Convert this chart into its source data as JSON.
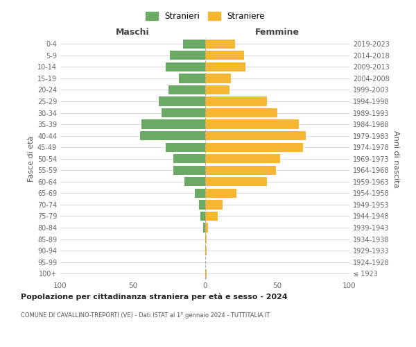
{
  "age_groups": [
    "100+",
    "95-99",
    "90-94",
    "85-89",
    "80-84",
    "75-79",
    "70-74",
    "65-69",
    "60-64",
    "55-59",
    "50-54",
    "45-49",
    "40-44",
    "35-39",
    "30-34",
    "25-29",
    "20-24",
    "15-19",
    "10-14",
    "5-9",
    "0-4"
  ],
  "birth_years": [
    "≤ 1923",
    "1924-1928",
    "1929-1933",
    "1934-1938",
    "1939-1943",
    "1944-1948",
    "1949-1953",
    "1954-1958",
    "1959-1963",
    "1964-1968",
    "1969-1973",
    "1974-1978",
    "1979-1983",
    "1984-1988",
    "1989-1993",
    "1994-1998",
    "1999-2003",
    "2004-2008",
    "2009-2013",
    "2014-2018",
    "2019-2023"
  ],
  "males": [
    0,
    0,
    0,
    0,
    1,
    3,
    4,
    7,
    14,
    22,
    22,
    27,
    45,
    44,
    30,
    32,
    25,
    18,
    27,
    24,
    15
  ],
  "females": [
    1,
    0,
    1,
    1,
    2,
    9,
    12,
    22,
    43,
    49,
    52,
    68,
    70,
    65,
    50,
    43,
    17,
    18,
    28,
    27,
    21
  ],
  "male_color": "#6aaa64",
  "female_color": "#f5b731",
  "background_color": "#ffffff",
  "grid_color": "#cccccc",
  "title": "Popolazione per cittadinanza straniera per età e sesso - 2024",
  "subtitle": "COMUNE DI CAVALLINO-TREPORTI (VE) - Dati ISTAT al 1° gennaio 2024 - TUTTITALIA.IT",
  "xlabel_left": "Maschi",
  "xlabel_right": "Femmine",
  "ylabel_left": "Fasce di età",
  "ylabel_right": "Anni di nascita",
  "legend_male": "Stranieri",
  "legend_female": "Straniere",
  "xlim": 100
}
